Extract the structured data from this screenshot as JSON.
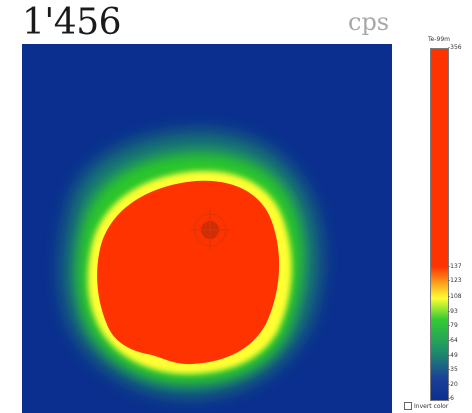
{
  "readout": {
    "value": "1'456",
    "unit": "cps"
  },
  "legend": {
    "title": "Te-99m",
    "ticks": [
      "-356",
      "-137",
      "-123",
      "-108",
      "-93",
      "-79",
      "-64",
      "-49",
      "-35",
      "-20",
      "-6"
    ],
    "tick_values": [
      356,
      137,
      123,
      108,
      93,
      79,
      64,
      49,
      35,
      20,
      6
    ],
    "vmin": 6,
    "vmax": 356
  },
  "controls": {
    "invert_color_label": "Invert color"
  },
  "colors": {
    "background_low": "#0b2f8f",
    "mid_green": "#2cc62c",
    "yellow": "#ffff33",
    "hot_red": "#ff3300"
  },
  "icons": {
    "target_marker": "crosshair-icon"
  }
}
